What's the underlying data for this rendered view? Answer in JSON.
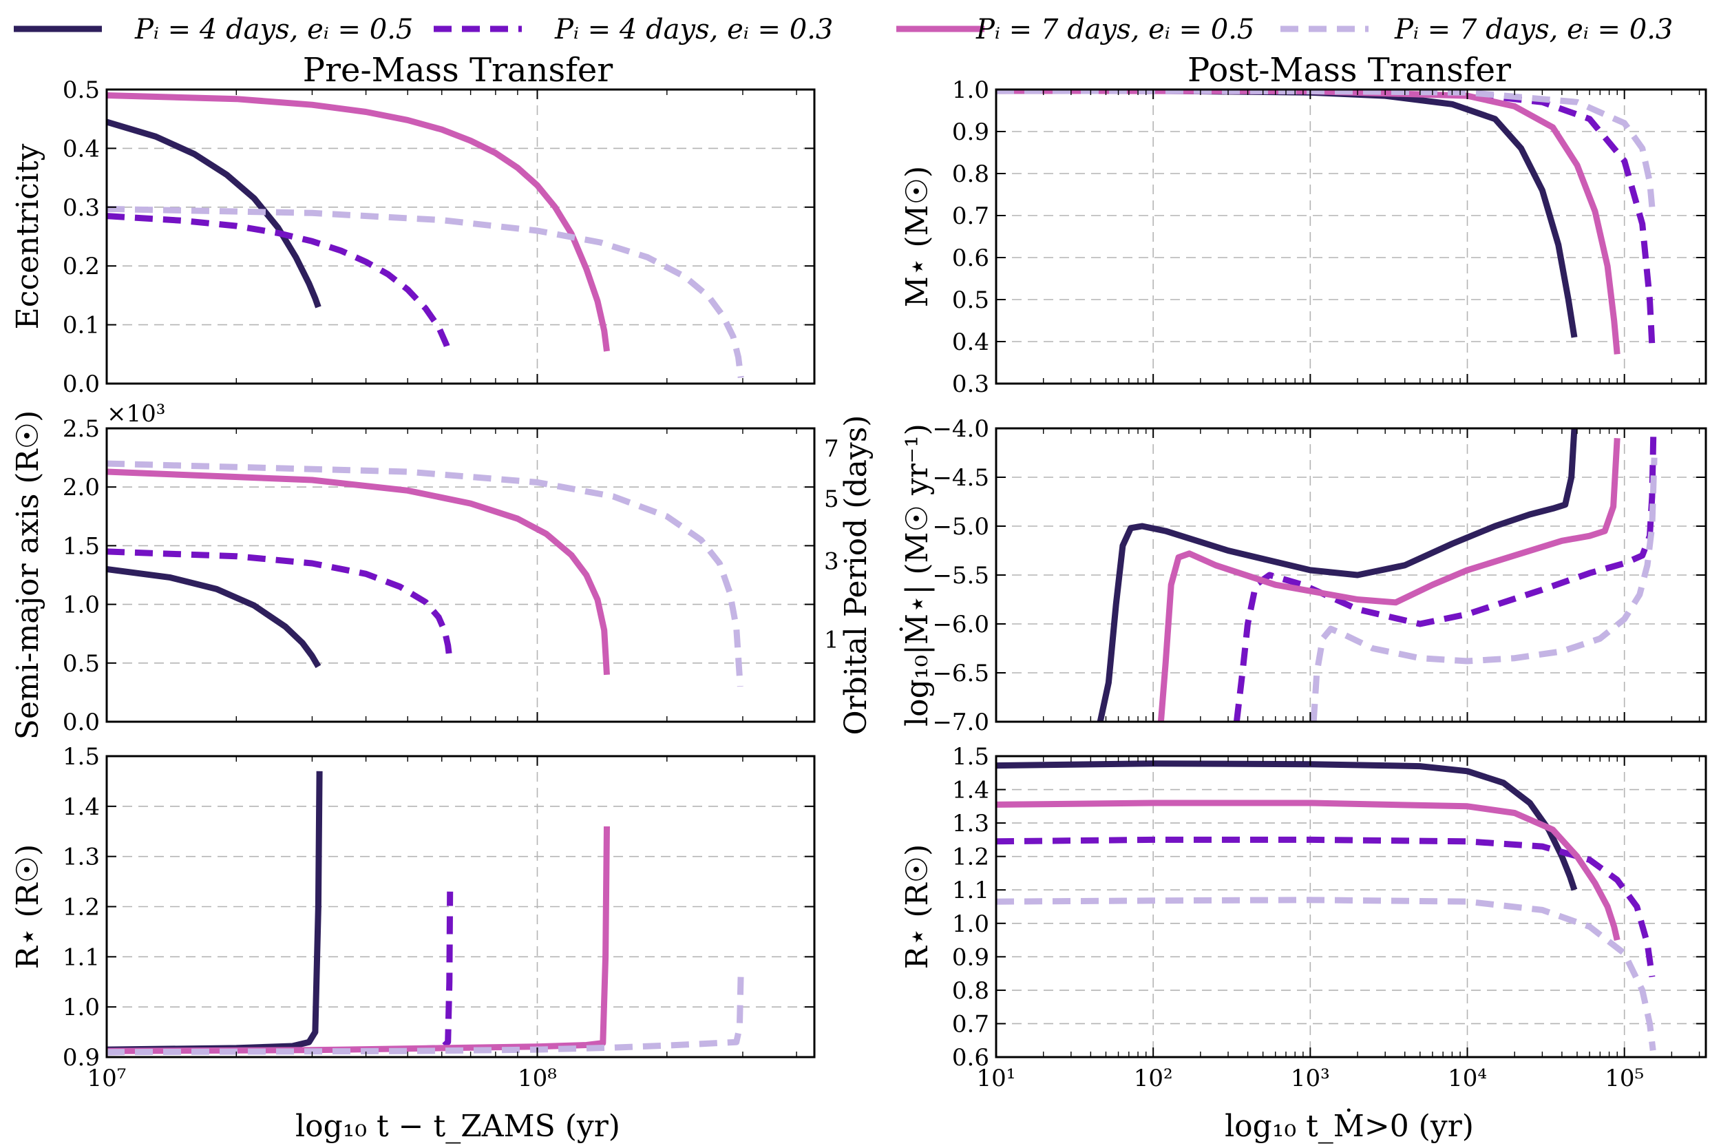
{
  "legend": [
    {
      "label": "Pᵢ = 4 days, eᵢ = 0.5",
      "color": "#2e1f5c",
      "dash": false
    },
    {
      "label": "Pᵢ = 4 days, eᵢ = 0.3",
      "color": "#7412c4",
      "dash": true
    },
    {
      "label": "Pᵢ = 7 days, eᵢ = 0.5",
      "color": "#cc5cb4",
      "dash": false
    },
    {
      "label": "Pᵢ = 7 days, eᵢ = 0.3",
      "color": "#c4b4e4",
      "dash": true
    }
  ],
  "titles": {
    "left": "Pre-Mass Transfer",
    "right": "Post-Mass Transfer"
  },
  "xlabels": {
    "left": "log₁₀ t − t_ZAMS (yr)",
    "right": "log₁₀ t_Ṁ>0 (yr)"
  },
  "chart_data": [
    {
      "id": "ecc",
      "type": "line",
      "ylabel": "Eccentricity",
      "xscale": "log",
      "xlim": [
        10000000.0,
        440000000.0
      ],
      "ylim": [
        0.0,
        0.5
      ],
      "yticks": [
        "0.0",
        "0.1",
        "0.2",
        "0.3",
        "0.4",
        "0.5"
      ],
      "xticks": [
        "10⁷",
        "10⁸"
      ],
      "series": [
        {
          "name": "P=4d, e=0.5",
          "x": [
            10000000.0,
            13000000.0,
            16000000.0,
            19000000.0,
            22000000.0,
            25000000.0,
            27500000.0,
            29500000.0,
            30500000.0,
            31000000.0
          ],
          "y": [
            0.445,
            0.42,
            0.39,
            0.355,
            0.315,
            0.265,
            0.215,
            0.17,
            0.145,
            0.13
          ]
        },
        {
          "name": "P=4d, e=0.3",
          "x": [
            10000000.0,
            15000000.0,
            20000000.0,
            25000000.0,
            30000000.0,
            35000000.0,
            40000000.0,
            45000000.0,
            50000000.0,
            55000000.0,
            59000000.0,
            61500000.0,
            62500000.0
          ],
          "y": [
            0.285,
            0.277,
            0.268,
            0.256,
            0.242,
            0.226,
            0.207,
            0.186,
            0.16,
            0.128,
            0.096,
            0.066,
            0.05
          ]
        },
        {
          "name": "P=7d, e=0.5",
          "x": [
            10000000.0,
            20000000.0,
            30000000.0,
            40000000.0,
            50000000.0,
            60000000.0,
            70000000.0,
            80000000.0,
            90000000.0,
            100000000.0,
            110000000.0,
            120000000.0,
            130000000.0,
            138000000.0,
            143000000.0,
            145000000.0
          ],
          "y": [
            0.49,
            0.484,
            0.474,
            0.462,
            0.448,
            0.432,
            0.413,
            0.392,
            0.367,
            0.337,
            0.3,
            0.255,
            0.195,
            0.14,
            0.09,
            0.055
          ]
        },
        {
          "name": "P=7d, e=0.3",
          "x": [
            10000000.0,
            30000000.0,
            60000000.0,
            100000000.0,
            140000000.0,
            180000000.0,
            220000000.0,
            250000000.0,
            270000000.0,
            285000000.0,
            293000000.0,
            297000000.0
          ],
          "y": [
            0.297,
            0.29,
            0.278,
            0.26,
            0.24,
            0.215,
            0.182,
            0.148,
            0.115,
            0.08,
            0.045,
            0.01
          ]
        }
      ]
    },
    {
      "id": "sma",
      "type": "line",
      "ylabel": "Semi-major axis (R☉)",
      "ylabel2": "Orbital Period (days)",
      "multiplier": "×10³",
      "xscale": "log",
      "xlim": [
        10000000.0,
        440000000.0
      ],
      "ylim": [
        0.0,
        2.5
      ],
      "yticks": [
        "0.0",
        "0.5",
        "1.0",
        "1.5",
        "2.0",
        "2.5"
      ],
      "xticks": [
        "10⁷",
        "10⁸"
      ],
      "period_ticks": [
        {
          "label": "1",
          "y": 0.7
        },
        {
          "label": "3",
          "y": 1.37
        },
        {
          "label": "5",
          "y": 1.9
        },
        {
          "label": "7",
          "y": 2.33
        }
      ],
      "series": [
        {
          "name": "P=4d, e=0.5",
          "x": [
            10000000.0,
            14000000.0,
            18000000.0,
            22000000.0,
            26000000.0,
            28500000.0,
            30000000.0,
            31000000.0
          ],
          "y": [
            1.3,
            1.23,
            1.13,
            0.99,
            0.81,
            0.67,
            0.56,
            0.47
          ]
        },
        {
          "name": "P=4d, e=0.3",
          "x": [
            10000000.0,
            20000000.0,
            30000000.0,
            40000000.0,
            48000000.0,
            55000000.0,
            59000000.0,
            61000000.0,
            62000000.0,
            62500000.0
          ],
          "y": [
            1.45,
            1.41,
            1.35,
            1.26,
            1.15,
            1.02,
            0.89,
            0.77,
            0.65,
            0.55
          ]
        },
        {
          "name": "P=7d, e=0.5",
          "x": [
            10000000.0,
            30000000.0,
            50000000.0,
            70000000.0,
            90000000.0,
            105000000.0,
            120000000.0,
            130000000.0,
            138000000.0,
            143000000.0,
            145000000.0
          ],
          "y": [
            2.13,
            2.06,
            1.97,
            1.86,
            1.73,
            1.6,
            1.42,
            1.25,
            1.04,
            0.78,
            0.4
          ]
        },
        {
          "name": "P=7d, e=0.3",
          "x": [
            10000000.0,
            50000000.0,
            100000000.0,
            150000000.0,
            200000000.0,
            240000000.0,
            265000000.0,
            280000000.0,
            290000000.0,
            296000000.0
          ],
          "y": [
            2.2,
            2.13,
            2.04,
            1.92,
            1.75,
            1.55,
            1.35,
            1.1,
            0.8,
            0.3
          ]
        }
      ]
    },
    {
      "id": "rad_pre",
      "type": "line",
      "ylabel": "R⋆ (R☉)",
      "xscale": "log",
      "xlim": [
        10000000.0,
        440000000.0
      ],
      "ylim": [
        0.9,
        1.5
      ],
      "yticks": [
        "0.9",
        "1.0",
        "1.1",
        "1.2",
        "1.3",
        "1.4",
        "1.5"
      ],
      "xticks": [
        "10⁷",
        "10⁸"
      ],
      "series": [
        {
          "name": "P=4d, e=0.5",
          "x": [
            10000000.0,
            20000000.0,
            27000000.0,
            29500000.0,
            30500000.0,
            31000000.0,
            31200000.0
          ],
          "y": [
            0.915,
            0.918,
            0.922,
            0.93,
            0.95,
            1.2,
            1.47
          ]
        },
        {
          "name": "P=4d, e=0.3",
          "x": [
            10000000.0,
            30000000.0,
            50000000.0,
            60000000.0,
            62000000.0,
            62500000.0,
            62700000.0
          ],
          "y": [
            0.91,
            0.913,
            0.916,
            0.918,
            0.93,
            1.05,
            1.23
          ]
        },
        {
          "name": "P=7d, e=0.5",
          "x": [
            10000000.0,
            30000000.0,
            60000000.0,
            100000000.0,
            130000000.0,
            142000000.0,
            144000000.0,
            145000000.0
          ],
          "y": [
            0.912,
            0.914,
            0.918,
            0.921,
            0.924,
            0.928,
            1.1,
            1.36
          ]
        },
        {
          "name": "P=7d, e=0.3",
          "x": [
            10000000.0,
            50000000.0,
            100000000.0,
            150000000.0,
            200000000.0,
            250000000.0,
            290000000.0,
            295000000.0,
            297000000.0
          ],
          "y": [
            0.91,
            0.912,
            0.915,
            0.919,
            0.923,
            0.927,
            0.93,
            0.96,
            1.07
          ]
        }
      ]
    },
    {
      "id": "mass",
      "type": "line",
      "ylabel": "M⋆ (M☉)",
      "xscale": "log",
      "xlim": [
        10,
        330000.0
      ],
      "ylim": [
        0.3,
        1.0
      ],
      "yticks": [
        "0.3",
        "0.4",
        "0.5",
        "0.6",
        "0.7",
        "0.8",
        "0.9",
        "1.0"
      ],
      "xticks": [
        "10¹",
        "10²",
        "10³",
        "10⁴",
        "10⁵"
      ],
      "series": [
        {
          "name": "P=4d, e=0.5",
          "x": [
            10,
            100.0,
            1000.0,
            3000.0,
            8000.0,
            15000.0,
            22000.0,
            30000.0,
            38000.0,
            44000.0,
            48000.0
          ],
          "y": [
            0.997,
            0.997,
            0.993,
            0.985,
            0.965,
            0.93,
            0.86,
            0.76,
            0.63,
            0.5,
            0.41
          ]
        },
        {
          "name": "P=4d, e=0.3",
          "x": [
            10,
            1000.0,
            10000.0,
            30000.0,
            60000.0,
            100000.0,
            130000.0,
            145000.0,
            150000.0
          ],
          "y": [
            0.997,
            0.996,
            0.99,
            0.97,
            0.93,
            0.83,
            0.68,
            0.5,
            0.39
          ]
        },
        {
          "name": "P=7d, e=0.5",
          "x": [
            10,
            1000.0,
            10000.0,
            20000.0,
            35000.0,
            50000.0,
            65000.0,
            78000.0,
            86000.0,
            90000.0
          ],
          "y": [
            0.997,
            0.996,
            0.985,
            0.96,
            0.91,
            0.82,
            0.71,
            0.58,
            0.45,
            0.37
          ]
        },
        {
          "name": "P=7d, e=0.3",
          "x": [
            10,
            1000.0,
            10000.0,
            50000.0,
            100000.0,
            130000.0,
            145000.0,
            150000.0
          ],
          "y": [
            0.997,
            0.996,
            0.993,
            0.97,
            0.92,
            0.86,
            0.78,
            0.72
          ]
        }
      ]
    },
    {
      "id": "mdot",
      "type": "line",
      "ylabel": "log₁₀|Ṁ⋆| (M☉ yr⁻¹)",
      "xscale": "log",
      "xlim": [
        10,
        330000.0
      ],
      "ylim": [
        -7.0,
        -4.0
      ],
      "yticks": [
        "−7.0",
        "−6.5",
        "−6.0",
        "−5.5",
        "−5.0",
        "−4.5",
        "−4.0"
      ],
      "xticks": [
        "10¹",
        "10²",
        "10³",
        "10⁴",
        "10⁵"
      ],
      "series": [
        {
          "name": "P=4d, e=0.5",
          "x": [
            46,
            52,
            58,
            64,
            72,
            85,
            120,
            300,
            1000,
            2000,
            4000,
            8000,
            15000.0,
            25000.0,
            35000.0,
            42000.0,
            46000.0,
            48000.0
          ],
          "y": [
            -7.0,
            -6.6,
            -5.8,
            -5.2,
            -5.02,
            -5.0,
            -5.05,
            -5.25,
            -5.45,
            -5.5,
            -5.4,
            -5.18,
            -5.0,
            -4.88,
            -4.82,
            -4.78,
            -4.5,
            -4.0
          ]
        },
        {
          "name": "P=4d, e=0.3",
          "x": [
            340,
            370,
            400,
            450,
            550,
            900,
            2000,
            5000,
            10000.0,
            30000.0,
            60000.0,
            100000.0,
            130000.0,
            145000.0,
            150000.0,
            153000.0
          ],
          "y": [
            -7.0,
            -6.5,
            -6.0,
            -5.6,
            -5.5,
            -5.6,
            -5.85,
            -6.0,
            -5.9,
            -5.65,
            -5.48,
            -5.38,
            -5.3,
            -5.1,
            -4.7,
            -4.05
          ]
        },
        {
          "name": "P=7d, e=0.5",
          "x": [
            112,
            120,
            130,
            145,
            170,
            250,
            600,
            2000,
            3500,
            6000,
            10000.0,
            20000.0,
            40000.0,
            60000.0,
            75000.0,
            85000.0,
            90000.0
          ],
          "y": [
            -7.0,
            -6.4,
            -5.6,
            -5.32,
            -5.28,
            -5.4,
            -5.6,
            -5.75,
            -5.78,
            -5.6,
            -5.45,
            -5.3,
            -5.15,
            -5.1,
            -5.05,
            -4.8,
            -4.1
          ]
        },
        {
          "name": "P=7d, e=0.3",
          "x": [
            1050,
            1100,
            1200,
            1350,
            1600,
            2500,
            5000,
            10000.0,
            20000.0,
            40000.0,
            70000.0,
            100000.0,
            125000.0,
            140000.0,
            150000.0,
            155000.0
          ],
          "y": [
            -7.0,
            -6.5,
            -6.15,
            -6.05,
            -6.1,
            -6.25,
            -6.35,
            -6.38,
            -6.35,
            -6.28,
            -6.15,
            -5.95,
            -5.7,
            -5.4,
            -5.0,
            -4.3
          ]
        }
      ]
    },
    {
      "id": "rad_post",
      "type": "line",
      "ylabel": "R⋆ (R☉)",
      "xscale": "log",
      "xlim": [
        10,
        330000.0
      ],
      "ylim": [
        0.6,
        1.5
      ],
      "yticks": [
        "0.6",
        "0.7",
        "0.8",
        "0.9",
        "1.0",
        "1.1",
        "1.2",
        "1.3",
        "1.4",
        "1.5"
      ],
      "xticks": [
        "10¹",
        "10²",
        "10³",
        "10⁴",
        "10⁵"
      ],
      "series": [
        {
          "name": "P=4d, e=0.5",
          "x": [
            10,
            100.0,
            1000.0,
            5000.0,
            10000.0,
            17000.0,
            25000.0,
            33000.0,
            40000.0,
            45000.0,
            48000.0
          ],
          "y": [
            1.472,
            1.478,
            1.476,
            1.47,
            1.455,
            1.42,
            1.36,
            1.28,
            1.2,
            1.14,
            1.1
          ]
        },
        {
          "name": "P=4d, e=0.3",
          "x": [
            10,
            100.0,
            1000.0,
            10000.0,
            30000.0,
            60000.0,
            90000.0,
            120000.0,
            140000.0,
            150000.0
          ],
          "y": [
            1.245,
            1.25,
            1.25,
            1.245,
            1.23,
            1.19,
            1.13,
            1.05,
            0.94,
            0.84
          ]
        },
        {
          "name": "P=7d, e=0.5",
          "x": [
            10,
            100.0,
            1000.0,
            10000.0,
            20000.0,
            35000.0,
            50000.0,
            65000.0,
            78000.0,
            86000.0,
            90000.0
          ],
          "y": [
            1.355,
            1.36,
            1.36,
            1.35,
            1.33,
            1.28,
            1.2,
            1.12,
            1.05,
            0.99,
            0.95
          ]
        },
        {
          "name": "P=7d, e=0.3",
          "x": [
            10,
            100.0,
            1000.0,
            10000.0,
            30000.0,
            60000.0,
            100000.0,
            130000.0,
            145000.0,
            152000.0
          ],
          "y": [
            1.065,
            1.068,
            1.07,
            1.065,
            1.04,
            0.99,
            0.91,
            0.8,
            0.7,
            0.62
          ]
        }
      ]
    }
  ]
}
